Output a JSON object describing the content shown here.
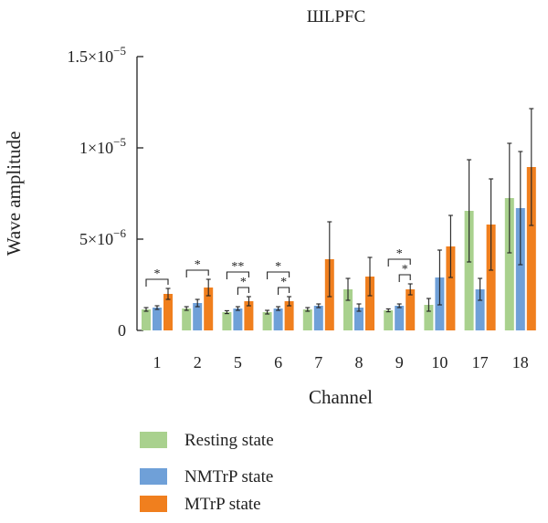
{
  "chart_data": {
    "type": "bar",
    "title": "ШLPFC",
    "xlabel": "Channel",
    "ylabel": "Wave amplitude",
    "ylim": [
      0,
      1.5e-05
    ],
    "yticks": [
      {
        "value": 1.5e-05,
        "label": "1.5×10",
        "exp": "−5"
      },
      {
        "value": 1e-05,
        "label": "1×10",
        "exp": "−5"
      },
      {
        "value": 5e-06,
        "label": "5×10",
        "exp": "−6"
      },
      {
        "value": 0,
        "label": "0",
        "exp": ""
      }
    ],
    "categories": [
      "1",
      "2",
      "5",
      "6",
      "7",
      "8",
      "9",
      "10",
      "17",
      "18"
    ],
    "series": [
      {
        "name": "Resting state",
        "color": "#a9d18e",
        "values": [
          1.15e-06,
          1.2e-06,
          1e-06,
          1e-06,
          1.15e-06,
          2.25e-06,
          1.1e-06,
          1.4e-06,
          6.55e-06,
          7.25e-06
        ],
        "errors": [
          1e-07,
          1e-07,
          8e-08,
          1e-07,
          1e-07,
          6e-07,
          8e-08,
          3.5e-07,
          2.8e-06,
          3e-06
        ]
      },
      {
        "name": "NMTrP state",
        "color": "#6fa0d8",
        "values": [
          1.25e-06,
          1.5e-06,
          1.2e-06,
          1.2e-06,
          1.35e-06,
          1.25e-06,
          1.35e-06,
          2.9e-06,
          2.25e-06,
          6.7e-06
        ],
        "errors": [
          1e-07,
          2e-07,
          1e-07,
          1e-07,
          1e-07,
          2e-07,
          1e-07,
          1.5e-06,
          6e-07,
          3.1e-06
        ]
      },
      {
        "name": "MTrP state",
        "color": "#f07f1e",
        "values": [
          2e-06,
          2.35e-06,
          1.6e-06,
          1.6e-06,
          3.9e-06,
          2.95e-06,
          2.25e-06,
          4.6e-06,
          5.8e-06,
          8.95e-06
        ],
        "errors": [
          3e-07,
          4.5e-07,
          2.5e-07,
          2.5e-07,
          2.05e-06,
          1.05e-06,
          3e-07,
          1.7e-06,
          2.5e-06,
          3.2e-06
        ]
      }
    ],
    "significance": [
      {
        "category": "1",
        "from": 0,
        "to": 2,
        "label": "*",
        "level": 0
      },
      {
        "category": "2",
        "from": 0,
        "to": 2,
        "label": "*",
        "level": 0
      },
      {
        "category": "5",
        "from": 1,
        "to": 2,
        "label": "*",
        "level": 0
      },
      {
        "category": "5",
        "from": 0,
        "to": 2,
        "label": "**",
        "level": 1
      },
      {
        "category": "6",
        "from": 1,
        "to": 2,
        "label": "*",
        "level": 0
      },
      {
        "category": "6",
        "from": 0,
        "to": 2,
        "label": "*",
        "level": 1
      },
      {
        "category": "9",
        "from": 1,
        "to": 2,
        "label": "*",
        "level": 0
      },
      {
        "category": "9",
        "from": 0,
        "to": 2,
        "label": "*",
        "level": 1
      }
    ],
    "legend_position": "bottom-left",
    "grid": false
  }
}
